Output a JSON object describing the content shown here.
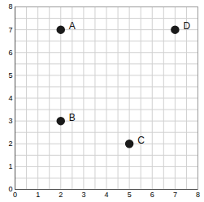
{
  "chart_data": {
    "type": "scatter",
    "x": [
      2,
      2,
      5,
      7
    ],
    "values": [
      7,
      3,
      2,
      7
    ],
    "labels": [
      "A",
      "B",
      "C",
      "D"
    ],
    "color": "#1a1a1a",
    "marker": "circle",
    "xlim": [
      0,
      8
    ],
    "xticks": [
      0,
      1,
      2,
      3,
      4,
      5,
      6,
      7,
      8
    ],
    "ylim": [
      0,
      8
    ],
    "yticks": [
      0,
      1,
      2,
      3,
      4,
      5,
      6,
      7,
      8
    ],
    "grid": true
  }
}
